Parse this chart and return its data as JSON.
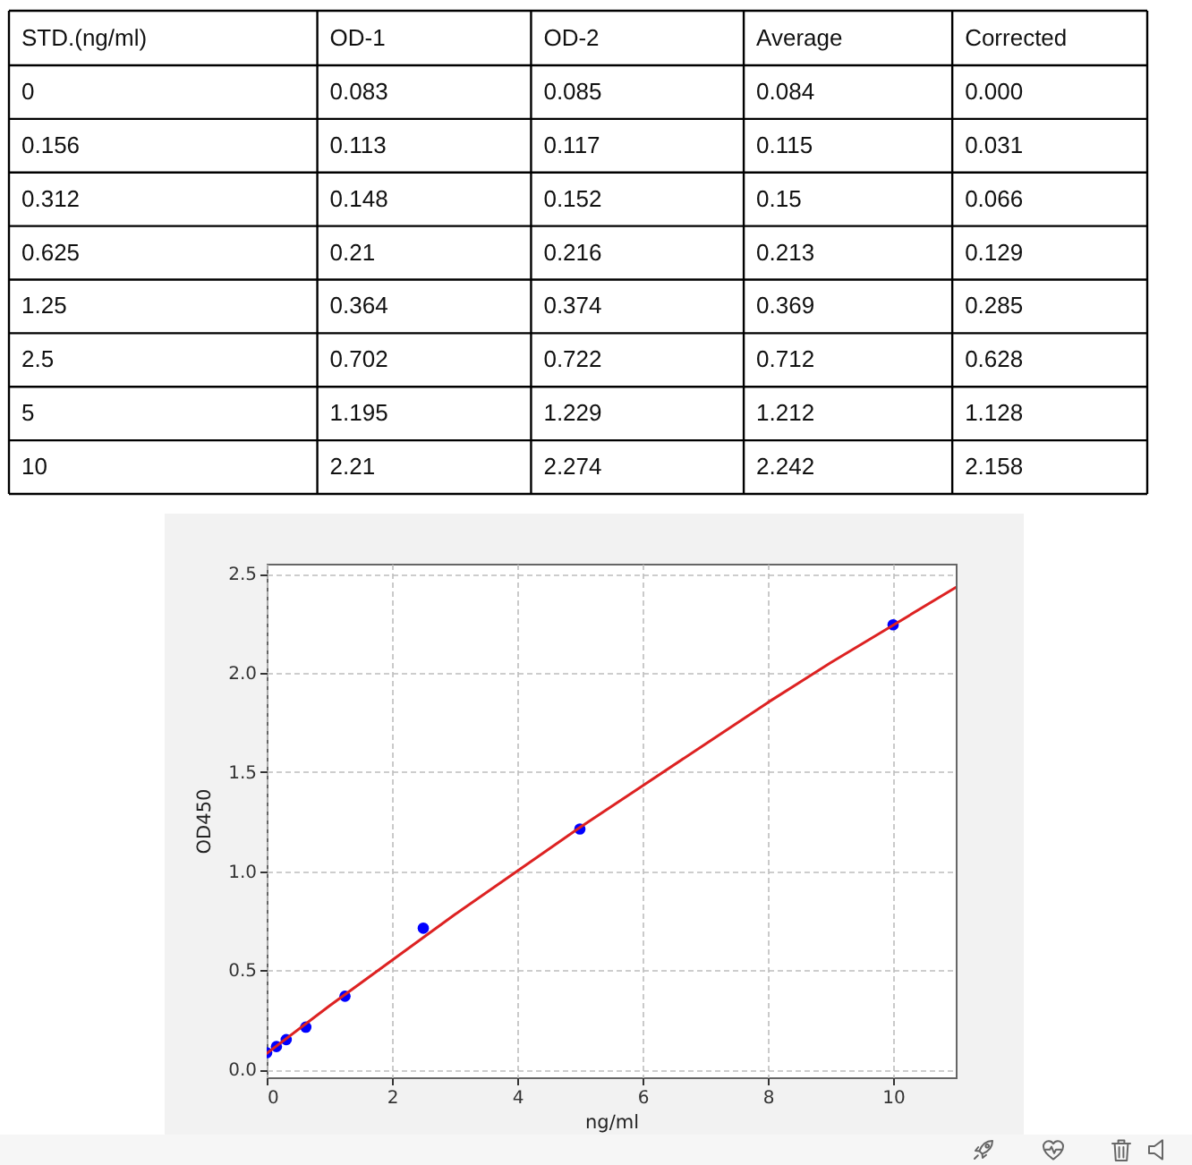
{
  "chart_data": [
    {
      "type": "other",
      "categories": [
        "STD.(ng/ml)",
        "OD-1",
        "OD-2",
        "Average",
        "Corrected"
      ],
      "cell_labels": [
        [
          "0",
          "0.083",
          "0.085",
          "0.084",
          "0.000"
        ],
        [
          "0.156",
          "0.113",
          "0.117",
          "0.115",
          "0.031"
        ],
        [
          "0.312",
          "0.148",
          "0.152",
          "0.15",
          "0.066"
        ],
        [
          "0.625",
          "0.21",
          "0.216",
          "0.213",
          "0.129"
        ],
        [
          "1.25",
          "0.364",
          "0.374",
          "0.369",
          "0.285"
        ],
        [
          "2.5",
          "0.702",
          "0.722",
          "0.712",
          "0.628"
        ],
        [
          "5",
          "1.195",
          "1.229",
          "1.212",
          "1.128"
        ],
        [
          "10",
          "2.21",
          "2.274",
          "2.242",
          "2.158"
        ]
      ]
    },
    {
      "type": "scatter",
      "x": [
        0,
        0.156,
        0.312,
        0.625,
        1.25,
        2.5,
        5,
        10
      ],
      "series": [
        {
          "type": "scatter",
          "color": "#0000ff",
          "marker": "circle",
          "values": [
            0.084,
            0.115,
            0.15,
            0.213,
            0.369,
            0.712,
            1.212,
            2.242
          ]
        },
        {
          "type": "line",
          "color": "#dd2222",
          "x": [
            0,
            1,
            2,
            3,
            4,
            5,
            6,
            7,
            8,
            9,
            10,
            11
          ],
          "values": [
            0.08,
            0.32,
            0.55,
            0.78,
            1.0,
            1.22,
            1.43,
            1.64,
            1.85,
            2.05,
            2.24,
            2.43
          ]
        }
      ],
      "xlabel": "ng/ml",
      "ylabel": "OD450",
      "xlim": [
        0,
        11
      ],
      "ylim": [
        -0.04,
        2.55
      ],
      "xticks": [
        0,
        2,
        4,
        6,
        8,
        10
      ],
      "yticks": [
        {
          "value": 0,
          "label": "0.0"
        },
        0.5,
        {
          "value": 1,
          "label": "1.0"
        },
        1.5,
        {
          "value": 2,
          "label": "2.0"
        },
        2.5
      ],
      "grid": true
    }
  ]
}
